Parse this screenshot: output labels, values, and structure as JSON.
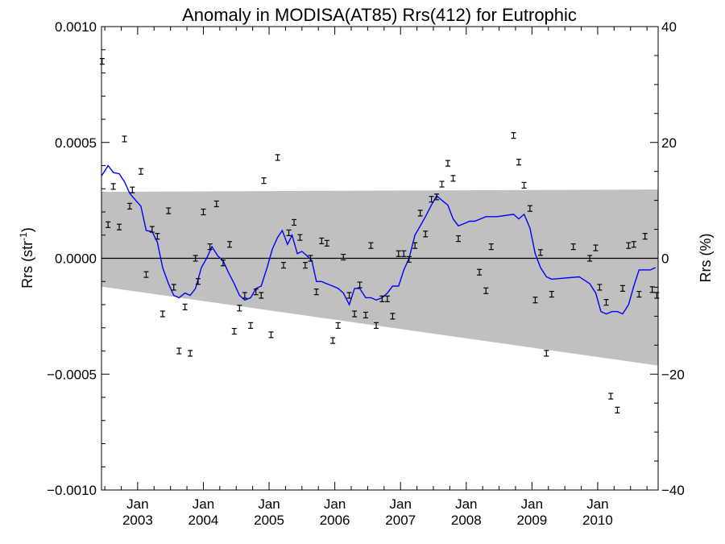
{
  "chart_data": {
    "type": "scatter",
    "title": "Anomaly in MODISA(AT85) Rrs(412) for Eutrophic",
    "ylabel_left": {
      "main": "Rrs (str",
      "sup": "-1",
      "close": ")"
    },
    "ylabel_right": "Rrs (%)",
    "x_tick_months": "Jan",
    "x_tick_years": [
      "2003",
      "2004",
      "2005",
      "2006",
      "2007",
      "2008",
      "2009",
      "2010"
    ],
    "xlim": [
      2002.45,
      2010.92
    ],
    "ylim_left": [
      -0.001,
      0.001
    ],
    "ylim_right": [
      -40,
      40
    ],
    "left_ticks": [
      "0.0010",
      "0.0005",
      "0.0000",
      "−0.0005",
      "−0.0010"
    ],
    "left_tick_values": [
      0.001,
      0.0005,
      0,
      -0.0005,
      -0.001
    ],
    "right_ticks": [
      "40",
      "20",
      "0",
      "−20",
      "−40"
    ],
    "right_tick_values": [
      40,
      20,
      0,
      -20,
      -40
    ],
    "colors": {
      "band": "#c0c0c0",
      "line": "#0000ff",
      "points": "#000000",
      "zero": "#000000"
    },
    "band": {
      "x": [
        2002.45,
        2010.92
      ],
      "upper": [
        0.000287,
        0.000297
      ],
      "lower": [
        -0.000122,
        -0.000463
      ]
    },
    "points": [
      [
        2002.46,
        0.00085
      ],
      [
        2002.55,
        0.000145
      ],
      [
        2002.63,
        0.00031
      ],
      [
        2002.72,
        0.000135
      ],
      [
        2002.8,
        0.000515
      ],
      [
        2002.88,
        0.000225
      ],
      [
        2002.92,
        0.000295
      ],
      [
        2003.05,
        0.000375
      ],
      [
        2003.13,
        -7e-05
      ],
      [
        2003.22,
        0.000125
      ],
      [
        2003.3,
        9.5e-05
      ],
      [
        2003.38,
        -0.00024
      ],
      [
        2003.47,
        0.000205
      ],
      [
        2003.55,
        -0.000125
      ],
      [
        2003.63,
        -0.0004
      ],
      [
        2003.72,
        -0.00021
      ],
      [
        2003.8,
        -0.00041
      ],
      [
        2003.88,
        0.0
      ],
      [
        2003.92,
        -0.0001
      ],
      [
        2004.0,
        0.0002
      ],
      [
        2004.1,
        5e-05
      ],
      [
        2004.2,
        0.000235
      ],
      [
        2004.3,
        -2e-05
      ],
      [
        2004.4,
        6e-05
      ],
      [
        2004.47,
        -0.000315
      ],
      [
        2004.55,
        -0.000215
      ],
      [
        2004.63,
        -0.00016
      ],
      [
        2004.72,
        -0.00029
      ],
      [
        2004.8,
        -0.000145
      ],
      [
        2004.88,
        -0.00016
      ],
      [
        2004.92,
        0.000335
      ],
      [
        2005.03,
        -0.00033
      ],
      [
        2005.13,
        0.000435
      ],
      [
        2005.22,
        -3e-05
      ],
      [
        2005.3,
        0.00011
      ],
      [
        2005.38,
        0.000155
      ],
      [
        2005.47,
        9e-05
      ],
      [
        2005.55,
        -3e-05
      ],
      [
        2005.63,
        0.0
      ],
      [
        2005.72,
        -0.000145
      ],
      [
        2005.8,
        7.5e-05
      ],
      [
        2005.88,
        6.5e-05
      ],
      [
        2005.97,
        -0.000355
      ],
      [
        2006.05,
        -0.00029
      ],
      [
        2006.13,
        5e-06
      ],
      [
        2006.22,
        -0.00016
      ],
      [
        2006.3,
        -0.00024
      ],
      [
        2006.38,
        -0.000115
      ],
      [
        2006.47,
        -0.000245
      ],
      [
        2006.55,
        5.5e-05
      ],
      [
        2006.63,
        -0.00029
      ],
      [
        2006.72,
        -0.000175
      ],
      [
        2006.8,
        -0.000175
      ],
      [
        2006.88,
        -0.00025
      ],
      [
        2006.97,
        2e-05
      ],
      [
        2007.05,
        2e-05
      ],
      [
        2007.13,
        -5e-06
      ],
      [
        2007.22,
        5.5e-05
      ],
      [
        2007.3,
        0.000195
      ],
      [
        2007.38,
        0.000105
      ],
      [
        2007.47,
        0.000255
      ],
      [
        2007.55,
        0.000265
      ],
      [
        2007.63,
        0.00032
      ],
      [
        2007.72,
        0.00041
      ],
      [
        2007.8,
        0.000345
      ],
      [
        2007.88,
        8.5e-05
      ],
      [
        2008.2,
        -6e-05
      ],
      [
        2008.3,
        -0.00014
      ],
      [
        2008.38,
        5e-05
      ],
      [
        2008.72,
        0.00053
      ],
      [
        2008.8,
        0.000415
      ],
      [
        2008.88,
        0.000315
      ],
      [
        2008.97,
        0.000215
      ],
      [
        2009.05,
        -0.00018
      ],
      [
        2009.13,
        2.5e-05
      ],
      [
        2009.22,
        -0.00041
      ],
      [
        2009.3,
        -0.000155
      ],
      [
        2009.63,
        5e-05
      ],
      [
        2009.88,
        0.0
      ],
      [
        2009.97,
        4.5e-05
      ],
      [
        2010.03,
        -0.000125
      ],
      [
        2010.13,
        -0.00019
      ],
      [
        2010.2,
        -0.000595
      ],
      [
        2010.3,
        -0.000655
      ],
      [
        2010.38,
        -0.00013
      ],
      [
        2010.47,
        5.5e-05
      ],
      [
        2010.55,
        6e-05
      ],
      [
        2010.63,
        -0.000155
      ],
      [
        2010.72,
        9.5e-05
      ],
      [
        2010.83,
        -0.000135
      ],
      [
        2010.9,
        -0.00016
      ]
    ],
    "line": [
      [
        2002.45,
        0.000355
      ],
      [
        2002.55,
        0.0004
      ],
      [
        2002.63,
        0.00037
      ],
      [
        2002.72,
        0.000365
      ],
      [
        2002.8,
        0.00033
      ],
      [
        2002.88,
        0.00028
      ],
      [
        2002.97,
        0.00025
      ],
      [
        2003.05,
        0.000225
      ],
      [
        2003.13,
        0.00012
      ],
      [
        2003.22,
        0.000115
      ],
      [
        2003.3,
        7e-05
      ],
      [
        2003.38,
        -4e-05
      ],
      [
        2003.47,
        -0.00011
      ],
      [
        2003.55,
        -0.00016
      ],
      [
        2003.63,
        -0.00017
      ],
      [
        2003.72,
        -0.00015
      ],
      [
        2003.8,
        -0.00016
      ],
      [
        2003.88,
        -0.00013
      ],
      [
        2003.97,
        -4e-05
      ],
      [
        2004.05,
        0.0
      ],
      [
        2004.13,
        5e-05
      ],
      [
        2004.22,
        1e-05
      ],
      [
        2004.3,
        -1e-05
      ],
      [
        2004.38,
        -6e-05
      ],
      [
        2004.47,
        -0.00011
      ],
      [
        2004.55,
        -0.00016
      ],
      [
        2004.63,
        -0.00018
      ],
      [
        2004.72,
        -0.00017
      ],
      [
        2004.8,
        -0.00013
      ],
      [
        2004.88,
        -0.00012
      ],
      [
        2004.97,
        -4e-05
      ],
      [
        2005.05,
        4e-05
      ],
      [
        2005.13,
        9e-05
      ],
      [
        2005.2,
        0.00012
      ],
      [
        2005.28,
        6e-05
      ],
      [
        2005.35,
        0.0001
      ],
      [
        2005.43,
        2e-05
      ],
      [
        2005.5,
        3e-05
      ],
      [
        2005.58,
        1e-05
      ],
      [
        2005.65,
        -1e-05
      ],
      [
        2005.72,
        -0.0001
      ],
      [
        2005.8,
        -0.0001
      ],
      [
        2005.88,
        -0.00011
      ],
      [
        2005.97,
        -0.00012
      ],
      [
        2006.05,
        -0.00013
      ],
      [
        2006.13,
        -0.00015
      ],
      [
        2006.22,
        -0.0002
      ],
      [
        2006.3,
        -0.00013
      ],
      [
        2006.38,
        -0.00013
      ],
      [
        2006.47,
        -0.00017
      ],
      [
        2006.55,
        -0.00017
      ],
      [
        2006.63,
        -0.00018
      ],
      [
        2006.72,
        -0.00017
      ],
      [
        2006.8,
        -0.00015
      ],
      [
        2006.88,
        -0.00012
      ],
      [
        2006.97,
        -0.00012
      ],
      [
        2007.05,
        -5e-05
      ],
      [
        2007.13,
        0.0
      ],
      [
        2007.22,
        0.0001
      ],
      [
        2007.3,
        0.00014
      ],
      [
        2007.38,
        0.00018
      ],
      [
        2007.47,
        0.00023
      ],
      [
        2007.55,
        0.00027
      ],
      [
        2007.63,
        0.00025
      ],
      [
        2007.72,
        0.00023
      ],
      [
        2007.8,
        0.00017
      ],
      [
        2007.88,
        0.00014
      ],
      [
        2007.97,
        0.00015
      ],
      [
        2008.05,
        0.00016
      ],
      [
        2008.13,
        0.00016
      ],
      [
        2008.3,
        0.00018
      ],
      [
        2008.47,
        0.00018
      ],
      [
        2008.72,
        0.00019
      ],
      [
        2008.8,
        0.00017
      ],
      [
        2008.88,
        0.00019
      ],
      [
        2008.97,
        0.00013
      ],
      [
        2009.05,
        2e-05
      ],
      [
        2009.13,
        -4e-05
      ],
      [
        2009.22,
        -8e-05
      ],
      [
        2009.3,
        -9e-05
      ],
      [
        2009.72,
        -8e-05
      ],
      [
        2009.88,
        -0.00011
      ],
      [
        2009.97,
        -0.00015
      ],
      [
        2010.05,
        -0.00023
      ],
      [
        2010.13,
        -0.00024
      ],
      [
        2010.22,
        -0.00023
      ],
      [
        2010.3,
        -0.00023
      ],
      [
        2010.38,
        -0.00024
      ],
      [
        2010.47,
        -0.0002
      ],
      [
        2010.55,
        -0.00012
      ],
      [
        2010.63,
        -5e-05
      ],
      [
        2010.72,
        -5e-05
      ],
      [
        2010.8,
        -5e-05
      ],
      [
        2010.88,
        -4e-05
      ]
    ]
  }
}
